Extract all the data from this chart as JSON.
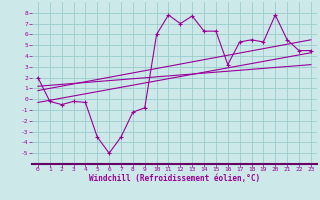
{
  "xlabel": "Windchill (Refroidissement éolien,°C)",
  "x_data": [
    0,
    1,
    2,
    3,
    4,
    5,
    6,
    7,
    8,
    9,
    10,
    11,
    12,
    13,
    14,
    15,
    16,
    17,
    18,
    19,
    20,
    21,
    22,
    23
  ],
  "y_scatter": [
    2,
    -0.2,
    -0.5,
    -0.2,
    -0.3,
    -3.5,
    -5.0,
    -3.5,
    -1.2,
    -0.8,
    6.0,
    7.8,
    7.0,
    7.7,
    6.3,
    6.3,
    3.2,
    5.3,
    5.5,
    5.3,
    7.8,
    5.5,
    4.5,
    4.5
  ],
  "line1_x": [
    0,
    23
  ],
  "line1_y": [
    -0.3,
    4.3
  ],
  "line2_x": [
    0,
    23
  ],
  "line2_y": [
    0.8,
    5.5
  ],
  "line3_x": [
    0,
    23
  ],
  "line3_y": [
    1.2,
    3.2
  ],
  "bg_color": "#cce8e8",
  "grid_color": "#99cccc",
  "line_color": "#990099",
  "xlim": [
    -0.5,
    23.5
  ],
  "ylim": [
    -6,
    9
  ],
  "xticks": [
    0,
    1,
    2,
    3,
    4,
    5,
    6,
    7,
    8,
    9,
    10,
    11,
    12,
    13,
    14,
    15,
    16,
    17,
    18,
    19,
    20,
    21,
    22,
    23
  ],
  "yticks": [
    -5,
    -4,
    -3,
    -2,
    -1,
    0,
    1,
    2,
    3,
    4,
    5,
    6,
    7,
    8
  ]
}
